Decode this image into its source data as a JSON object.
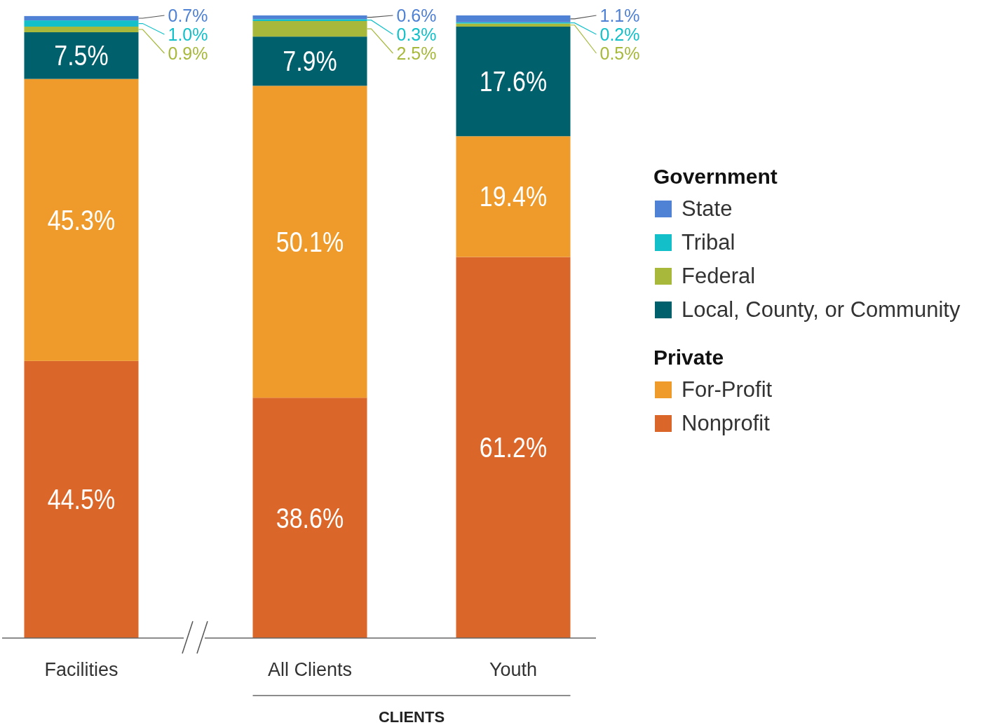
{
  "chart_data": {
    "type": "bar",
    "stacked": true,
    "legend": "right",
    "categories": [
      "Facilities",
      "All Clients",
      "Youth"
    ],
    "series": [
      {
        "name": "Nonprofit",
        "color": "#db6629",
        "values": [
          44.5,
          38.6,
          61.2
        ],
        "value_labels": [
          "44.5%",
          "38.6%",
          "61.2%"
        ]
      },
      {
        "name": "For-Profit",
        "color": "#ee9b2c",
        "values": [
          45.3,
          50.1,
          19.4
        ],
        "value_labels": [
          "45.3%",
          "50.1%",
          "19.4%"
        ]
      },
      {
        "name": "Local, County, or Community",
        "color": "#00606b",
        "values": [
          7.5,
          7.9,
          17.6
        ],
        "value_labels": [
          "7.5%",
          "7.9%",
          "17.6%"
        ]
      },
      {
        "name": "Federal",
        "color": "#a7b83a",
        "values": [
          0.9,
          2.5,
          0.5
        ],
        "value_labels": [
          "0.9%",
          "2.5%",
          "0.5%"
        ]
      },
      {
        "name": "Tribal",
        "color": "#13c0c9",
        "values": [
          1.0,
          0.3,
          0.2
        ],
        "value_labels": [
          "1.0%",
          "0.3%",
          "0.2%"
        ]
      },
      {
        "name": "State",
        "color": "#4f81d4",
        "values": [
          0.7,
          0.6,
          1.1
        ],
        "value_labels": [
          "0.7%",
          "0.6%",
          "1.1%"
        ]
      }
    ],
    "annotations": [
      "Government",
      "Private",
      "CLIENTS"
    ]
  }
}
